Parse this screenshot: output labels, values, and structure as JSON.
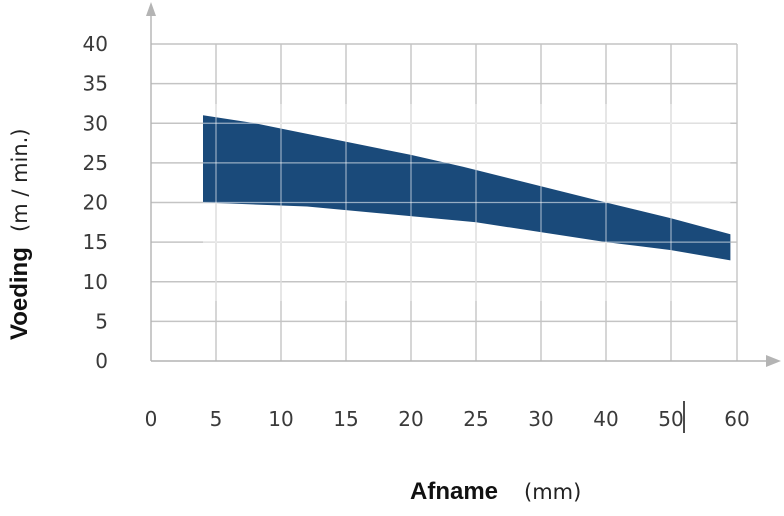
{
  "chart_data": {
    "type": "area",
    "xlabel": "Afname",
    "xlabel_unit": "(mm)",
    "ylabel": "Voeding",
    "ylabel_unit": "(m / min.)",
    "x_ticks": [
      "0",
      "5",
      "10",
      "15",
      "20",
      "25",
      "30",
      "40",
      "50",
      "60"
    ],
    "y_ticks": [
      "40",
      "35",
      "30",
      "25",
      "20",
      "15",
      "10",
      "5",
      "0"
    ],
    "ylim": [
      0,
      40
    ],
    "grid": true,
    "band": {
      "color": "#1a4a7a",
      "upper": [
        {
          "x": 4,
          "y": 31
        },
        {
          "x": 8,
          "y": 30
        },
        {
          "x": 20,
          "y": 26
        },
        {
          "x": 24,
          "y": 24.5
        },
        {
          "x": 40,
          "y": 20
        },
        {
          "x": 50,
          "y": 18
        },
        {
          "x": 59,
          "y": 16
        }
      ],
      "lower": [
        {
          "x": 4,
          "y": 20
        },
        {
          "x": 12,
          "y": 19.5
        },
        {
          "x": 25,
          "y": 17.5
        },
        {
          "x": 40,
          "y": 15
        },
        {
          "x": 50,
          "y": 14
        },
        {
          "x": 59,
          "y": 12.7
        }
      ]
    }
  }
}
